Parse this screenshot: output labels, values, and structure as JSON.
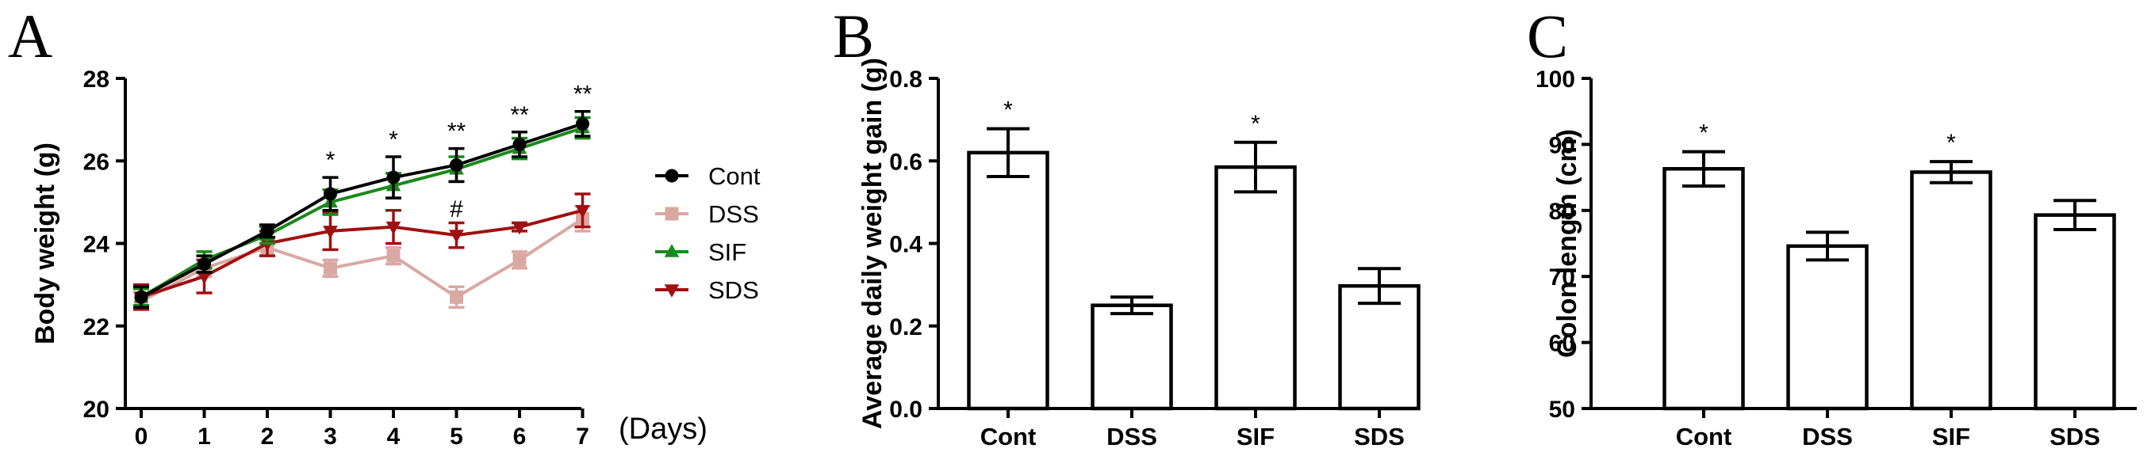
{
  "chart_data": [
    {
      "panel": "A",
      "type": "line",
      "xlabel": "(Days)",
      "ylabel": "Body weight (g)",
      "x": [
        0,
        1,
        2,
        3,
        4,
        5,
        6,
        7
      ],
      "xticks": [
        "0",
        "1",
        "2",
        "3",
        "4",
        "5",
        "6",
        "7"
      ],
      "ylim": [
        20,
        28
      ],
      "yticks": [
        "20",
        "22",
        "24",
        "26",
        "28"
      ],
      "grid": false,
      "legend": "right",
      "series": [
        {
          "name": "Cont",
          "color": "#000000",
          "marker": "circle",
          "values": [
            22.7,
            23.5,
            24.3,
            25.2,
            25.6,
            25.9,
            26.4,
            26.9
          ],
          "errors": [
            0.25,
            0.2,
            0.15,
            0.4,
            0.5,
            0.4,
            0.3,
            0.3
          ]
        },
        {
          "name": "DSS",
          "color": "#d9a8a3",
          "marker": "square",
          "values": [
            22.6,
            23.4,
            23.9,
            23.4,
            23.7,
            22.7,
            23.6,
            24.6
          ],
          "errors": [
            0.2,
            0.2,
            0.2,
            0.2,
            0.2,
            0.25,
            0.2,
            0.3
          ]
        },
        {
          "name": "SIF",
          "color": "#1a8a1a",
          "marker": "triangle",
          "values": [
            22.7,
            23.6,
            24.2,
            25.0,
            25.4,
            25.8,
            26.3,
            26.8
          ],
          "errors": [
            0.2,
            0.2,
            0.2,
            0.3,
            0.3,
            0.3,
            0.25,
            0.25
          ]
        },
        {
          "name": "SDS",
          "color": "#a01010",
          "marker": "triangle-down",
          "values": [
            22.7,
            23.2,
            24.0,
            24.3,
            24.4,
            24.2,
            24.4,
            24.8
          ],
          "errors": [
            0.3,
            0.4,
            0.3,
            0.45,
            0.4,
            0.3,
            0.1,
            0.4
          ]
        }
      ],
      "annotations": [
        {
          "x": 3,
          "text": "*"
        },
        {
          "x": 4,
          "text": "*"
        },
        {
          "x": 5,
          "text": "**"
        },
        {
          "x": 6,
          "text": "**"
        },
        {
          "x": 7,
          "text": "**"
        },
        {
          "x": 5,
          "y": 24.6,
          "text": "#"
        }
      ]
    },
    {
      "panel": "B",
      "type": "bar",
      "ylabel": "Average daily weight gain (g)",
      "categories": [
        "Cont",
        "DSS",
        "SIF",
        "SDS"
      ],
      "values": [
        0.62,
        0.25,
        0.585,
        0.297
      ],
      "errors": [
        0.058,
        0.02,
        0.06,
        0.042
      ],
      "ylim": [
        0,
        0.8
      ],
      "yticks": [
        "0.0",
        "0.2",
        "0.4",
        "0.6",
        "0.8"
      ],
      "annotations": [
        "*",
        "",
        "*",
        ""
      ],
      "grid": false
    },
    {
      "panel": "C",
      "type": "bar",
      "ylabel": "Colon length (cm)",
      "categories": [
        "Cont",
        "DSS",
        "SIF",
        "SDS"
      ],
      "values": [
        86.3,
        74.6,
        85.8,
        79.3
      ],
      "errors": [
        2.6,
        2.1,
        1.6,
        2.2
      ],
      "ylim": [
        50,
        100
      ],
      "yticks": [
        "50",
        "60",
        "70",
        "80",
        "90",
        "100"
      ],
      "annotations": [
        "*",
        "",
        "*",
        ""
      ],
      "grid": false
    }
  ]
}
